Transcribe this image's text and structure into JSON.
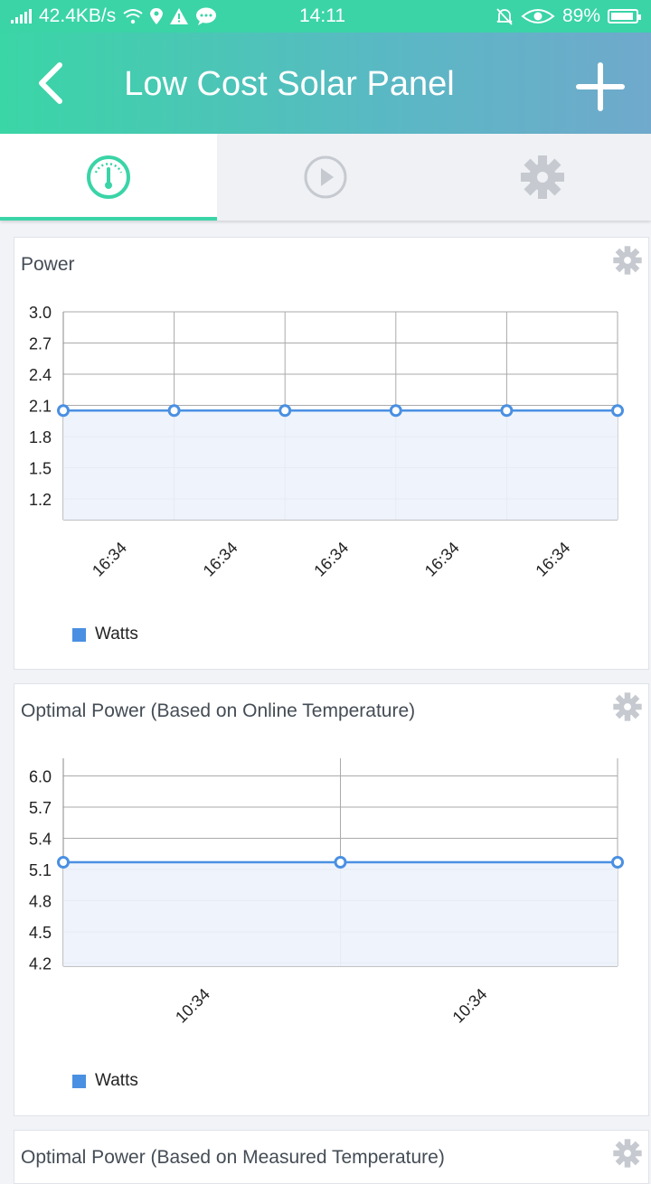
{
  "status": {
    "speed": "42.4KB/s",
    "time": "14:11",
    "battery": "89%"
  },
  "header": {
    "title": "Low Cost Solar Panel",
    "back_icon": "chevron-left-icon",
    "add_icon": "plus-icon"
  },
  "tabs": [
    {
      "icon": "gauge-icon",
      "active": true
    },
    {
      "icon": "play-icon",
      "active": false
    },
    {
      "icon": "gear-icon",
      "active": false
    }
  ],
  "colors": {
    "accent": "#3ad4a7",
    "series": "#4a90e2",
    "fill": "#edf3fc"
  },
  "cards": [
    {
      "title": "Power",
      "legend": "Watts"
    },
    {
      "title": "Optimal Power (Based on Online Temperature)",
      "legend": "Watts"
    },
    {
      "title": "Optimal Power (Based on Measured Temperature)"
    }
  ],
  "chart_data": [
    {
      "type": "area",
      "title": "Power",
      "x": [
        "16:34",
        "16:34",
        "16:34",
        "16:34",
        "16:34",
        "16:34"
      ],
      "x_tick_labels": [
        "16:34",
        "16:34",
        "16:34",
        "16:34",
        "16:34"
      ],
      "series": [
        {
          "name": "Watts",
          "values": [
            2.05,
            2.05,
            2.05,
            2.05,
            2.05,
            2.05
          ]
        }
      ],
      "y_ticks": [
        "3.0",
        "2.7",
        "2.4",
        "2.1",
        "1.8",
        "1.5",
        "1.2"
      ],
      "ylim": [
        1.0,
        3.0
      ],
      "grid": true,
      "legend": "bottom-left"
    },
    {
      "type": "area",
      "title": "Optimal Power (Based on Online Temperature)",
      "x": [
        "10:34",
        "10:34",
        "10:34"
      ],
      "x_tick_labels": [
        "10:34",
        "10:34"
      ],
      "series": [
        {
          "name": "Watts",
          "values": [
            5.17,
            5.17,
            5.17
          ]
        }
      ],
      "y_ticks": [
        "6.0",
        "5.7",
        "5.4",
        "5.1",
        "4.8",
        "4.5",
        "4.2"
      ],
      "ylim": [
        4.17,
        6.17
      ],
      "grid": true,
      "legend": "bottom-left"
    }
  ]
}
